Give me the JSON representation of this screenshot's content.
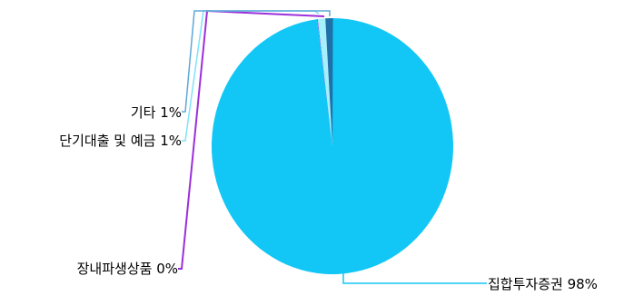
{
  "chart_data": {
    "type": "pie",
    "title": "",
    "legend": "none",
    "slices": [
      {
        "label": "집합투자증권",
        "value": 98,
        "display": "집합투자증권 98%",
        "color": "#12C7F5",
        "leader": "#12C7F5"
      },
      {
        "label": "장내파생상품",
        "value": 0,
        "display": "장내파생상품 0%",
        "color": "#8A2BE2",
        "leader": "#9B30D9"
      },
      {
        "label": "단기대출 및 예금",
        "value": 1,
        "display": "단기대출 및 예금 1%",
        "color": "#A5F0FC",
        "leader": "#7FE3F7"
      },
      {
        "label": "기타",
        "value": 1,
        "display": "기타 1%",
        "color": "#1F6FA8",
        "leader": "#5FA8D6"
      }
    ]
  }
}
